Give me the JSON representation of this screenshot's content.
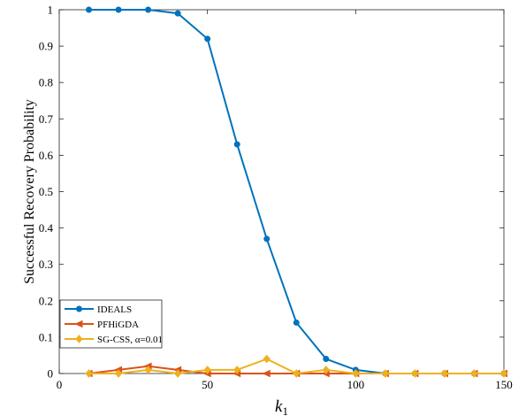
{
  "chart_data": {
    "type": "line",
    "xlabel": "k",
    "xlabel_subscript": "1",
    "ylabel": "Successful Recovery Probability",
    "xlim": [
      0,
      150
    ],
    "ylim": [
      0,
      1
    ],
    "x_ticks": [
      0,
      50,
      100,
      150
    ],
    "y_ticks": [
      0,
      0.1,
      0.2,
      0.3,
      0.4,
      0.5,
      0.6,
      0.7,
      0.8,
      0.9,
      1
    ],
    "grid": false,
    "legend_position": "bottom-left",
    "x": [
      10,
      20,
      30,
      40,
      50,
      60,
      70,
      80,
      90,
      100,
      110,
      120,
      130,
      140,
      150
    ],
    "series": [
      {
        "name": "IDEALS",
        "color": "#0072BD",
        "marker": "circle",
        "values": [
          1,
          1,
          1,
          0.99,
          0.92,
          0.63,
          0.37,
          0.14,
          0.04,
          0.01,
          0,
          0,
          0,
          0,
          0
        ]
      },
      {
        "name": "PFHiGDA",
        "color": "#D95319",
        "marker": "triangle-left",
        "values": [
          0,
          0.01,
          0.02,
          0.01,
          0,
          0,
          0,
          0,
          0,
          0,
          0,
          0,
          0,
          0,
          0
        ]
      },
      {
        "name": "SG-CSS, α=0.01",
        "color": "#EDB120",
        "marker": "diamond",
        "values": [
          0,
          0,
          0.01,
          0,
          0.01,
          0.01,
          0.04,
          0,
          0.01,
          0,
          0,
          0,
          0,
          0,
          0
        ]
      }
    ]
  }
}
